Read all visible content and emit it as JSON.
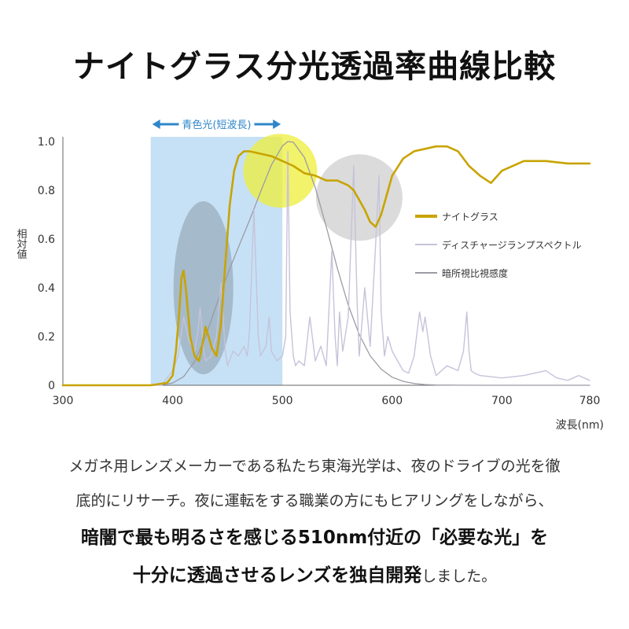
{
  "page": {
    "title": "ナイトグラス分光透過率曲線比較",
    "caption_line1": "メガネ用レンズメーカーである私たち東海光学は、夜のドライブの光を徹",
    "caption_line2": "底的にリサーチ。夜に運転をする職業の方にもヒアリングをしながら、",
    "caption_line3": "暗闇で最も明るさを感じる510nm付近の「必要な光」を",
    "caption_line4_bold": "十分に透過させるレンズを独自開発",
    "caption_line4_tail": "しました。"
  },
  "chart_data": {
    "type": "line",
    "xlabel": "波長(nm)",
    "ylabel": "相対値",
    "xlim": [
      300,
      780
    ],
    "ylim": [
      0,
      1.0
    ],
    "x_ticks": [
      300,
      400,
      500,
      600,
      700,
      780
    ],
    "y_ticks": [
      0,
      0.2,
      0.4,
      0.6,
      0.8,
      1.0
    ],
    "y_tick_labels": [
      "0",
      "0.2",
      "0.4",
      "0.6",
      "0.8",
      "1.0"
    ],
    "grid": false,
    "legend_position": "right",
    "band": {
      "label": "青色光(短波長)",
      "from": 380,
      "to": 500,
      "color": "#bcdcf3"
    },
    "highlights": [
      {
        "center_x": 428,
        "center_y": 0.4,
        "color": "#8a9aa8"
      },
      {
        "center_x": 498,
        "center_y": 0.88,
        "color": "#eeee3a"
      },
      {
        "center_x": 570,
        "center_y": 0.77,
        "color": "#bdbdbd"
      }
    ],
    "series": [
      {
        "name": "ナイトグラス",
        "color": "#c8a400",
        "x": [
          300,
          380,
          395,
          400,
          403,
          406,
          408,
          410,
          412,
          414,
          416,
          420,
          424,
          426,
          430,
          436,
          440,
          444,
          448,
          452,
          456,
          460,
          465,
          470,
          480,
          490,
          500,
          510,
          520,
          530,
          540,
          550,
          560,
          565,
          570,
          575,
          580,
          585,
          590,
          600,
          610,
          620,
          630,
          640,
          650,
          660,
          670,
          680,
          690,
          700,
          720,
          740,
          760,
          780
        ],
        "y": [
          0.0,
          0.0,
          0.01,
          0.04,
          0.14,
          0.3,
          0.44,
          0.47,
          0.4,
          0.3,
          0.2,
          0.12,
          0.1,
          0.14,
          0.24,
          0.15,
          0.12,
          0.25,
          0.5,
          0.74,
          0.88,
          0.94,
          0.96,
          0.96,
          0.95,
          0.94,
          0.92,
          0.9,
          0.87,
          0.86,
          0.84,
          0.84,
          0.82,
          0.8,
          0.76,
          0.72,
          0.67,
          0.65,
          0.7,
          0.86,
          0.93,
          0.96,
          0.97,
          0.98,
          0.98,
          0.96,
          0.9,
          0.86,
          0.83,
          0.88,
          0.92,
          0.92,
          0.91,
          0.91
        ]
      },
      {
        "name": "ディスチャージランプスペクトル",
        "color": "#c5c3da",
        "x": [
          300,
          390,
          400,
          405,
          410,
          415,
          420,
          423,
          425,
          428,
          430,
          435,
          440,
          444,
          446,
          448,
          450,
          455,
          460,
          465,
          468,
          470,
          474,
          478,
          480,
          485,
          488,
          490,
          495,
          500,
          503,
          505,
          507,
          510,
          512,
          515,
          520,
          525,
          530,
          535,
          540,
          545,
          548,
          550,
          552,
          555,
          560,
          565,
          568,
          570,
          575,
          580,
          585,
          588,
          590,
          593,
          596,
          600,
          610,
          615,
          620,
          625,
          628,
          630,
          635,
          640,
          650,
          660,
          665,
          668,
          670,
          672,
          675,
          680,
          700,
          720,
          740,
          750,
          760,
          770,
          780
        ],
        "y": [
          0.0,
          0.0,
          0.06,
          0.12,
          0.28,
          0.18,
          0.14,
          0.22,
          0.32,
          0.15,
          0.1,
          0.12,
          0.2,
          0.42,
          0.28,
          0.14,
          0.08,
          0.14,
          0.12,
          0.16,
          0.12,
          0.22,
          0.72,
          0.2,
          0.12,
          0.16,
          0.28,
          0.14,
          0.1,
          0.12,
          0.2,
          0.96,
          0.3,
          0.12,
          0.08,
          0.1,
          0.08,
          0.28,
          0.1,
          0.16,
          0.08,
          0.55,
          0.2,
          0.08,
          0.3,
          0.14,
          0.28,
          0.9,
          0.35,
          0.12,
          0.4,
          0.16,
          0.58,
          0.86,
          0.3,
          0.12,
          0.2,
          0.14,
          0.06,
          0.05,
          0.12,
          0.3,
          0.22,
          0.28,
          0.12,
          0.04,
          0.08,
          0.06,
          0.14,
          0.3,
          0.14,
          0.06,
          0.05,
          0.04,
          0.03,
          0.04,
          0.06,
          0.03,
          0.02,
          0.04,
          0.02
        ]
      },
      {
        "name": "暗所視比視感度",
        "color": "#9b9ba5",
        "x": [
          300,
          380,
          390,
          400,
          410,
          420,
          430,
          440,
          450,
          460,
          470,
          480,
          490,
          500,
          505,
          510,
          520,
          530,
          540,
          550,
          560,
          570,
          580,
          590,
          600,
          610,
          620,
          630,
          640,
          650,
          660,
          680,
          700,
          780
        ],
        "y": [
          0.0,
          0.0,
          0.002,
          0.009,
          0.035,
          0.097,
          0.2,
          0.33,
          0.455,
          0.567,
          0.676,
          0.793,
          0.904,
          0.982,
          1.0,
          0.997,
          0.935,
          0.811,
          0.65,
          0.481,
          0.329,
          0.208,
          0.121,
          0.066,
          0.033,
          0.016,
          0.007,
          0.003,
          0.001,
          0.0005,
          0.0002,
          0.0,
          0.0,
          0.0
        ]
      }
    ]
  }
}
